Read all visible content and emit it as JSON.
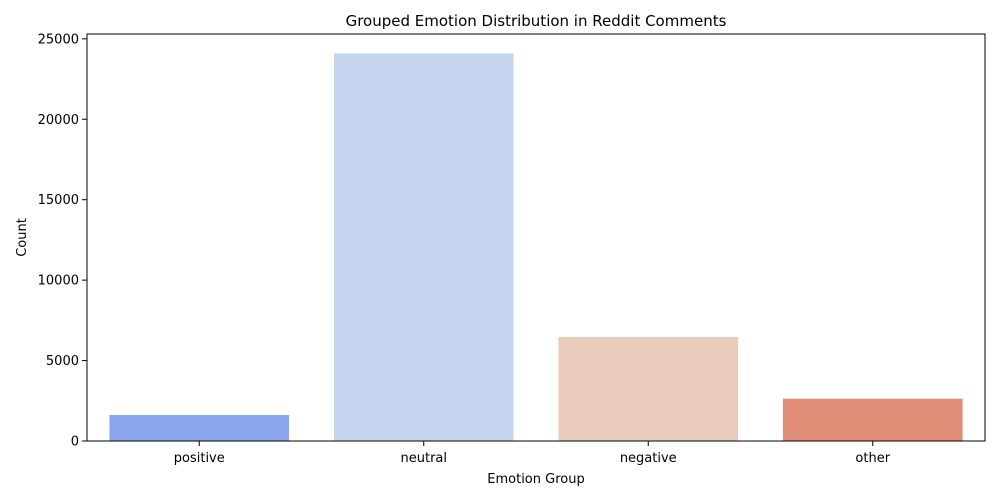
{
  "chart_data": {
    "type": "bar",
    "title": "Grouped Emotion Distribution in Reddit Comments",
    "xlabel": "Emotion Group",
    "ylabel": "Count",
    "categories": [
      "positive",
      "neutral",
      "negative",
      "other"
    ],
    "values": [
      1620,
      24100,
      6470,
      2630
    ],
    "colors": [
      "#8aa6ee",
      "#c7d6f0",
      "#eaccbd",
      "#df8d76"
    ],
    "ylim": [
      0,
      25300
    ],
    "yticks": [
      0,
      5000,
      10000,
      15000,
      20000,
      25000
    ],
    "grid": false,
    "legend": "none"
  }
}
